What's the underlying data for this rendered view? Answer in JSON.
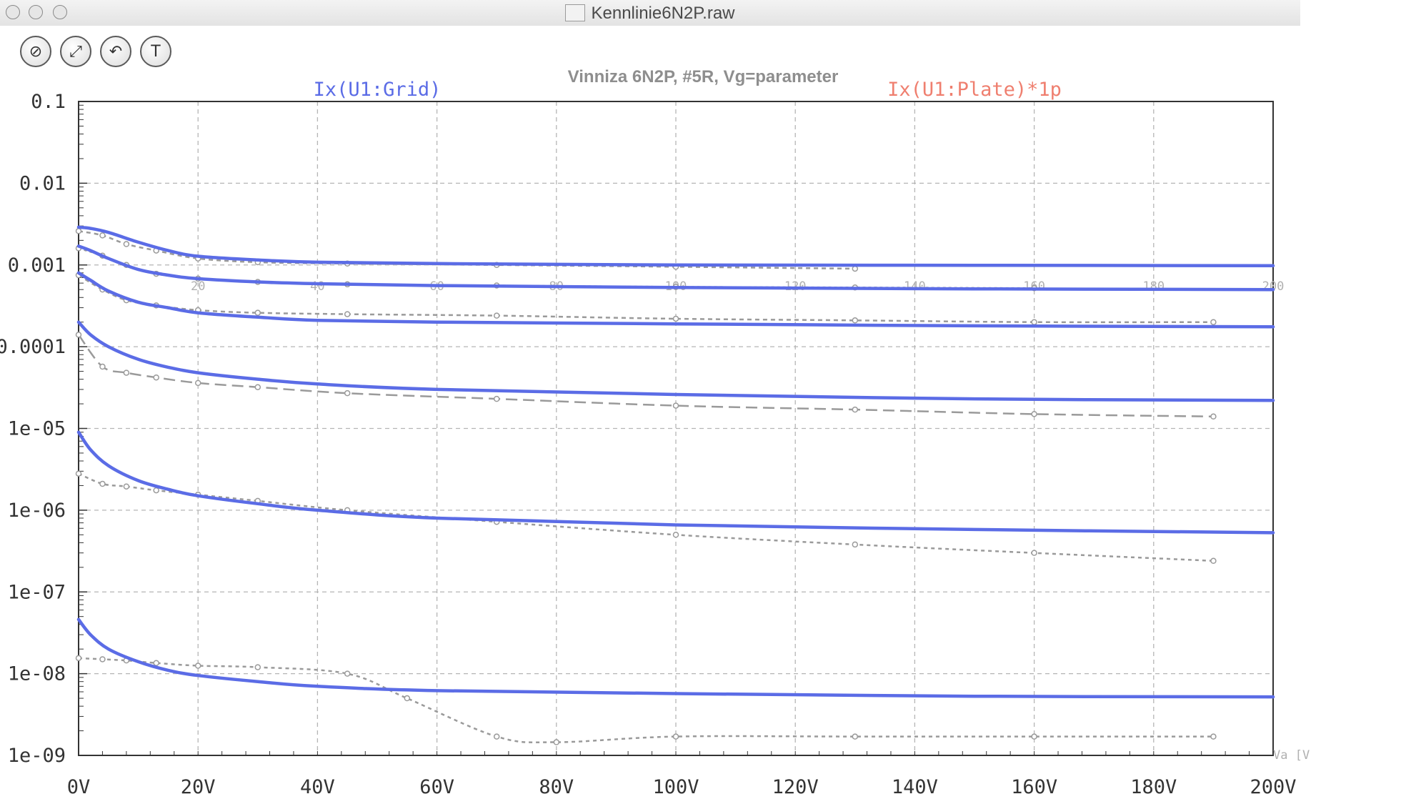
{
  "window": {
    "title": "Kennlinie6N2P.raw"
  },
  "toolbar": {
    "buttons": [
      {
        "name": "zoom-off-button",
        "glyph": "⊘"
      },
      {
        "name": "zoom-extents-button",
        "glyph": "⤢"
      },
      {
        "name": "zoom-back-button",
        "glyph": "↶"
      },
      {
        "name": "settings-hammer-button",
        "glyph": "T"
      }
    ]
  },
  "plot_title": "Vinniza 6N2P, #5R, Vg=parameter",
  "colors": {
    "sim": "#5b6ce6",
    "meas": "#9a9a9a",
    "legend_grid": "#5b6ce6",
    "legend_plate": "#ef7f6f",
    "grid": "#b5b5b5"
  },
  "chart_data": {
    "type": "line",
    "title": "Vinniza 6N2P, #5R, Vg=parameter",
    "xlabel": "",
    "ylabel": "",
    "legend": [
      "Ix(U1:Grid)",
      "Ix(U1:Plate)*1p"
    ],
    "xlim": [
      0,
      200
    ],
    "ylim": [
      1e-09,
      0.1
    ],
    "yscale": "log",
    "grid": true,
    "x_ticks": [
      "0V",
      "20V",
      "40V",
      "60V",
      "80V",
      "100V",
      "120V",
      "140V",
      "160V",
      "180V",
      "200V"
    ],
    "y_ticks": [
      "0.1",
      "0.01",
      "0.001",
      "0.0001",
      "1e-05",
      "1e-06",
      "1e-07",
      "1e-08",
      "1e-09"
    ],
    "secondary_x_ticks": [
      "0",
      "20",
      "40",
      "60",
      "80",
      "100",
      "120",
      "140",
      "160",
      "180",
      "200"
    ],
    "secondary_x_label": "Va [V",
    "simulated": [
      {
        "x": [
          0,
          2,
          5,
          10,
          15,
          20,
          30,
          40,
          60,
          100,
          150,
          200
        ],
        "y": [
          0.0029,
          0.0028,
          0.0025,
          0.0019,
          0.0015,
          0.00128,
          0.00115,
          0.00108,
          0.00104,
          0.001,
          0.00099,
          0.00098
        ]
      },
      {
        "x": [
          0,
          2,
          5,
          10,
          15,
          20,
          30,
          40,
          60,
          100,
          150,
          200
        ],
        "y": [
          0.0017,
          0.0015,
          0.0012,
          0.00088,
          0.00075,
          0.00068,
          0.00062,
          0.00059,
          0.00056,
          0.00053,
          0.00051,
          0.0005
        ]
      },
      {
        "x": [
          0,
          2,
          5,
          10,
          15,
          20,
          30,
          40,
          60,
          100,
          150,
          200
        ],
        "y": [
          0.0008,
          0.00065,
          0.00048,
          0.00035,
          0.0003,
          0.00026,
          0.00023,
          0.00021,
          0.0002,
          0.00019,
          0.00018,
          0.000175
        ]
      },
      {
        "x": [
          0,
          2,
          5,
          10,
          15,
          20,
          30,
          40,
          60,
          100,
          150,
          200
        ],
        "y": [
          0.0002,
          0.00014,
          0.0001,
          7e-05,
          5.6e-05,
          4.8e-05,
          4e-05,
          3.5e-05,
          3e-05,
          2.6e-05,
          2.3e-05,
          2.2e-05
        ]
      },
      {
        "x": [
          0,
          2,
          5,
          10,
          15,
          20,
          30,
          40,
          60,
          100,
          150,
          200
        ],
        "y": [
          9e-06,
          5.5e-06,
          3.5e-06,
          2.3e-06,
          1.8e-06,
          1.5e-06,
          1.2e-06,
          1e-06,
          8e-07,
          6.6e-07,
          5.8e-07,
          5.3e-07
        ]
      },
      {
        "x": [
          0,
          2,
          5,
          10,
          15,
          20,
          30,
          40,
          60,
          100,
          150,
          200
        ],
        "y": [
          4.6e-08,
          3e-08,
          2e-08,
          1.4e-08,
          1.1e-08,
          9.5e-09,
          8e-09,
          7e-09,
          6.2e-09,
          5.7e-09,
          5.3e-09,
          5.2e-09
        ]
      }
    ],
    "measured": [
      {
        "x": [
          0,
          4,
          8,
          13,
          20,
          30,
          45,
          70,
          100,
          130
        ],
        "y": [
          0.0026,
          0.0023,
          0.0018,
          0.0015,
          0.0012,
          0.00108,
          0.00104,
          0.001,
          0.00095,
          0.0009
        ]
      },
      {
        "x": [
          0,
          4,
          8,
          13,
          20,
          30,
          45,
          70,
          100,
          130,
          160
        ],
        "y": [
          0.0016,
          0.0013,
          0.001,
          0.00078,
          0.00068,
          0.00062,
          0.00058,
          0.00056,
          0.00054,
          0.00053,
          0.00052
        ]
      },
      {
        "x": [
          0,
          4,
          8,
          13,
          20,
          30,
          45,
          70,
          100,
          130,
          160,
          190
        ],
        "y": [
          0.00075,
          0.0005,
          0.00037,
          0.00032,
          0.00028,
          0.00026,
          0.00025,
          0.00024,
          0.00022,
          0.00021,
          0.0002,
          0.0002
        ]
      },
      {
        "x": [
          0,
          4,
          8,
          13,
          20,
          30,
          45,
          70,
          100,
          130,
          160,
          190
        ],
        "y": [
          0.00014,
          5.7e-05,
          4.8e-05,
          4.2e-05,
          3.6e-05,
          3.2e-05,
          2.7e-05,
          2.3e-05,
          1.9e-05,
          1.7e-05,
          1.5e-05,
          1.4e-05
        ]
      },
      {
        "x": [
          0,
          4,
          8,
          13,
          20,
          30,
          45,
          70,
          100,
          130,
          160,
          190
        ],
        "y": [
          2.8e-06,
          2.1e-06,
          1.95e-06,
          1.75e-06,
          1.55e-06,
          1.3e-06,
          1e-06,
          7.2e-07,
          5e-07,
          3.8e-07,
          3e-07,
          2.4e-07
        ]
      },
      {
        "x": [
          0,
          4,
          8,
          13,
          20,
          30,
          45,
          55,
          70,
          80,
          100,
          130,
          160,
          190
        ],
        "y": [
          1.55e-08,
          1.5e-08,
          1.45e-08,
          1.35e-08,
          1.25e-08,
          1.2e-08,
          1e-08,
          5e-09,
          1.7e-09,
          1.45e-09,
          1.7e-09,
          1.7e-09,
          1.7e-09,
          1.7e-09
        ]
      }
    ]
  }
}
